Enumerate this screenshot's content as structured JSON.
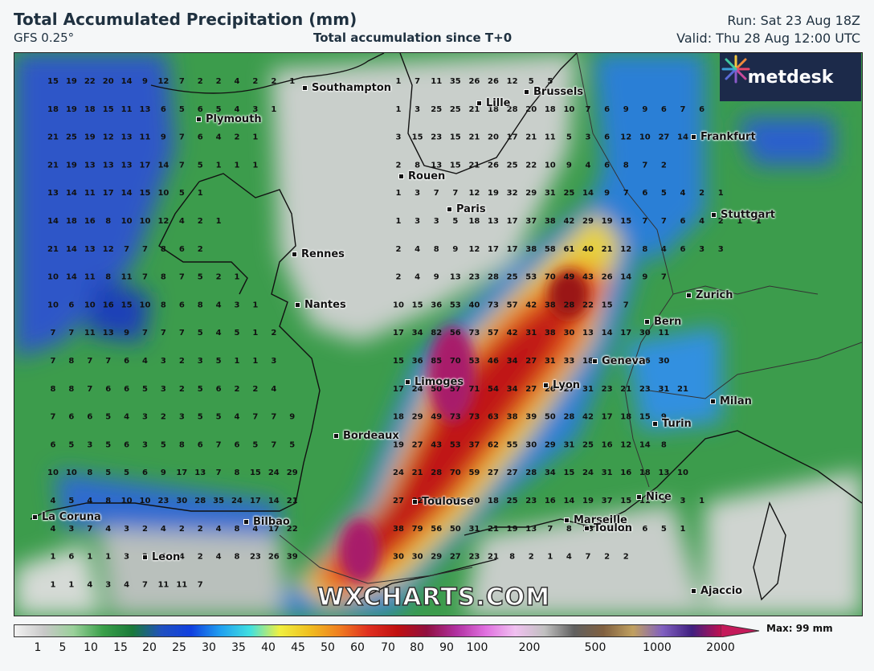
{
  "header": {
    "title": "Total Accumulated Precipitation (mm)",
    "model": "GFS 0.25°",
    "subtitle": "Total accumulation since T+0",
    "run": "Run: Sat 23 Aug 18Z",
    "valid": "Valid: Thu 28 Aug 12:00 UTC"
  },
  "logo": {
    "text": "metdesk"
  },
  "watermark": "WXCHARTS.COM",
  "cities": [
    {
      "name": "Southampton",
      "id": "southampton"
    },
    {
      "name": "Lille",
      "id": "lille"
    },
    {
      "name": "Brussels",
      "id": "brussels"
    },
    {
      "name": "Plymouth",
      "id": "plymouth"
    },
    {
      "name": "Frankfurt",
      "id": "frankfurt"
    },
    {
      "name": "Rouen",
      "id": "rouen"
    },
    {
      "name": "Paris",
      "id": "paris"
    },
    {
      "name": "Stuttgart",
      "id": "stuttgart"
    },
    {
      "name": "Rennes",
      "id": "rennes"
    },
    {
      "name": "Zurich",
      "id": "zurich"
    },
    {
      "name": "Nantes",
      "id": "nantes"
    },
    {
      "name": "Bern",
      "id": "bern"
    },
    {
      "name": "Geneva",
      "id": "geneva"
    },
    {
      "name": "Limoges",
      "id": "limoges"
    },
    {
      "name": "Lyon",
      "id": "lyon"
    },
    {
      "name": "Milan",
      "id": "milan"
    },
    {
      "name": "Turin",
      "id": "turin"
    },
    {
      "name": "Bordeaux",
      "id": "bordeaux"
    },
    {
      "name": "Nice",
      "id": "nice"
    },
    {
      "name": "Toulouse",
      "id": "toulouse"
    },
    {
      "name": "La Coruna",
      "id": "la-coruna"
    },
    {
      "name": "Bilbao",
      "id": "bilbao"
    },
    {
      "name": "Marseille",
      "id": "marseille"
    },
    {
      "name": "Toulon",
      "id": "toulon"
    },
    {
      "name": "Leon",
      "id": "leon"
    },
    {
      "name": "Ajaccio",
      "id": "ajaccio"
    }
  ],
  "legend": {
    "ticks": [
      "1",
      "5",
      "10",
      "15",
      "20",
      "25",
      "30",
      "35",
      "40",
      "45",
      "50",
      "60",
      "70",
      "80",
      "90",
      "100",
      "200",
      "500",
      "1000",
      "2000"
    ],
    "max_label": "Max: 99 mm"
  },
  "grid_values": [
    "15 19 22 20 14 9 12 7 2 2 4 2 2 1",
    "18 19 18 15 11 13 6 5 6 5 4 3 1",
    "21 25 19 12 13 11 9 7 6 4 2 1",
    "21 19 13 13 13 17 14 7 5 1 1 1",
    "13 14 11 17 14 15 10 5 1",
    "14 18 16 8 10 10 12 4 2 1",
    "21 14 13 12 7 7 8 6 2",
    "10 14 11 8 11 7 8 7 5 2 1",
    "10 6 10 16 15 10 8 6 8 4 3 1",
    "7 7 11 13 9 7 7 7 5 4 5 1 2",
    "7 8 7 7 6 4 3 2 3 5 1 1 3",
    "8 8 7 6 6 5 3 2 5 6 2 2 4",
    "7 6 6 5 4 3 2 3 5 5 4 7 7 9",
    "6 5 3 5 6 3 5 8 6 7 6 5 7 5",
    "10 10 8 5 5 6 9 17 13 7 8 15 24 29",
    "4 5 4 8 10 10 23 30 28 35 24 17 14 21",
    "4 3 7 4 3 2 4 2 2 4 8 4 17 22",
    "1 6 1 1 3 2 4 4 2 4 8 23 26 39",
    "1 1 4 3 4 7 11 11 7"
  ],
  "grid_values_east": [
    "1 7 11 35 26 26 12 5 5",
    "1 3 25 25 21 18 28 20 18 10 7 6 9 9 6 7 6",
    "3 15 23 15 21 20 17 21 11 5 3 6 12 10 27 14",
    "2 8 13 15 21 26 25 22 10 9 4 6 8 7 2",
    "1 3 7 7 12 19 32 29 31 25 14 9 7 6 5 4 2 1",
    "1 3 3 5 18 13 17 37 38 42 29 19 15 7 7 6 4 2 1 1",
    "2 4 8 9 12 17 17 38 58 61 40 21 12 8 4 6 3 3",
    "2 4 9 13 23 28 25 53 70 49 43 26 14 9 7",
    "10 15 36 53 40 73 57 42 38 28 22 15 7",
    "17 34 82 56 73 57 42 31 38 30 13 14 17 30 11",
    "15 36 85 70 53 46 34 27 31 33 18 16 17 36 30",
    "17 24 50 57 71 54 34 27 26 27 31 23 21 23 31 21",
    "18 29 49 73 73 63 38 39 50 28 42 17 18 15 9",
    "19 27 43 53 37 62 55 30 29 31 25 16 12 14 8",
    "24 21 28 70 59 27 27 28 34 15 24 31 16 18 13 10",
    "27 32 66 36 30 18 25 23 16 14 19 37 15 11 3 3 1",
    "38 79 56 50 31 21 19 13 7 8 13 16 13 6 5 1",
    "30 30 29 27 23 21 8 2 1 4 7 2 2"
  ]
}
